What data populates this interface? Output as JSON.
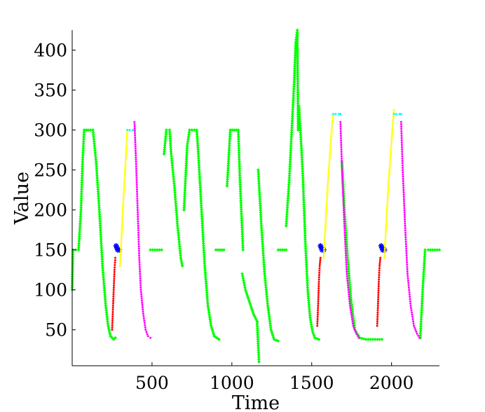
{
  "chart_data": {
    "type": "scatter",
    "xlabel": "Time",
    "ylabel": "Value",
    "xlim": [
      0,
      2300
    ],
    "ylim": [
      5,
      425
    ],
    "xticks": [
      500,
      1000,
      1500,
      2000
    ],
    "yticks": [
      50,
      100,
      150,
      200,
      250,
      300,
      350,
      400
    ],
    "grid": false,
    "colors": {
      "green": "#00ff00",
      "yellow": "#ffff00",
      "magenta": "#ff00ff",
      "cyan": "#00ffff",
      "red": "#ff0000",
      "blue": "#0000ff"
    },
    "series": [
      {
        "color_key": "green",
        "marker": "diamond",
        "segments": [
          [
            [
              0,
              100
            ],
            [
              5,
              150
            ],
            [
              40,
              150
            ],
            [
              55,
              200
            ],
            [
              65,
              260
            ],
            [
              75,
              300
            ],
            [
              100,
              300
            ],
            [
              130,
              300
            ],
            [
              150,
              260
            ],
            [
              170,
              200
            ],
            [
              190,
              130
            ],
            [
              210,
              80
            ],
            [
              225,
              55
            ],
            [
              240,
              42
            ],
            [
              260,
              38
            ],
            [
              270,
              40
            ]
          ],
          [
            [
              490,
              150
            ],
            [
              560,
              150
            ]
          ],
          [
            [
              575,
              270
            ],
            [
              590,
              300
            ],
            [
              610,
              300
            ],
            [
              620,
              270
            ],
            [
              640,
              230
            ],
            [
              660,
              180
            ],
            [
              680,
              140
            ],
            [
              690,
              130
            ]
          ],
          [
            [
              700,
              200
            ],
            [
              720,
              280
            ],
            [
              735,
              300
            ],
            [
              780,
              300
            ],
            [
              790,
              270
            ],
            [
              810,
              200
            ],
            [
              830,
              130
            ],
            [
              850,
              80
            ],
            [
              870,
              55
            ],
            [
              890,
              42
            ],
            [
              920,
              38
            ]
          ],
          [
            [
              900,
              150
            ],
            [
              950,
              150
            ]
          ],
          [
            [
              970,
              230
            ],
            [
              990,
              300
            ],
            [
              1040,
              300
            ],
            [
              1050,
              240
            ],
            [
              1070,
              150
            ]
          ],
          [
            [
              1065,
              120
            ],
            [
              1085,
              100
            ],
            [
              1110,
              85
            ],
            [
              1135,
              70
            ],
            [
              1160,
              60
            ]
          ],
          [
            [
              1158,
              60
            ],
            [
              1165,
              30
            ],
            [
              1170,
              10
            ]
          ],
          [
            [
              1165,
              250
            ],
            [
              1185,
              180
            ],
            [
              1205,
              120
            ],
            [
              1225,
              80
            ],
            [
              1245,
              50
            ],
            [
              1265,
              38
            ],
            [
              1290,
              36
            ]
          ],
          [
            [
              1290,
              150
            ],
            [
              1340,
              150
            ]
          ],
          [
            [
              1340,
              180
            ],
            [
              1360,
              240
            ],
            [
              1375,
              300
            ],
            [
              1390,
              360
            ],
            [
              1400,
              410
            ],
            [
              1410,
              425
            ],
            [
              1415,
              300
            ],
            [
              1420,
              330
            ],
            [
              1435,
              280
            ],
            [
              1445,
              240
            ],
            [
              1460,
              160
            ],
            [
              1475,
              100
            ],
            [
              1490,
              65
            ],
            [
              1505,
              48
            ],
            [
              1520,
              40
            ],
            [
              1545,
              38
            ]
          ],
          [
            [
              1690,
              260
            ],
            [
              1705,
              200
            ],
            [
              1725,
              140
            ],
            [
              1745,
              90
            ],
            [
              1770,
              50
            ],
            [
              1800,
              40
            ],
            [
              1840,
              38
            ],
            [
              1940,
              38
            ]
          ],
          [
            [
              2180,
              40
            ],
            [
              2195,
              100
            ],
            [
              2210,
              150
            ],
            [
              2230,
              150
            ],
            [
              2300,
              150
            ]
          ]
        ]
      },
      {
        "color_key": "red",
        "marker": "dot",
        "segments": [
          [
            [
              250,
              50
            ],
            [
              255,
              75
            ],
            [
              260,
              100
            ],
            [
              265,
              125
            ],
            [
              270,
              140
            ]
          ],
          [
            [
              1535,
              55
            ],
            [
              1540,
              80
            ],
            [
              1545,
              110
            ],
            [
              1550,
              130
            ],
            [
              1555,
              140
            ]
          ],
          [
            [
              1910,
              55
            ],
            [
              1915,
              80
            ],
            [
              1920,
              110
            ],
            [
              1925,
              130
            ],
            [
              1930,
              140
            ]
          ]
        ]
      },
      {
        "color_key": "blue",
        "marker": "star",
        "segments": [
          [
            [
              275,
              155
            ],
            [
              285,
              150
            ],
            [
              295,
              150
            ]
          ],
          [
            [
              1555,
              155
            ],
            [
              1565,
              150
            ],
            [
              1575,
              150
            ]
          ],
          [
            [
              1935,
              155
            ],
            [
              1945,
              150
            ],
            [
              1955,
              150
            ]
          ]
        ]
      },
      {
        "color_key": "yellow",
        "marker": "dot",
        "segments": [
          [
            [
              300,
              130
            ],
            [
              320,
              210
            ],
            [
              340,
              280
            ],
            [
              345,
              300
            ]
          ],
          [
            [
              1575,
              140
            ],
            [
              1600,
              230
            ],
            [
              1625,
              300
            ],
            [
              1635,
              320
            ]
          ],
          [
            [
              1955,
              140
            ],
            [
              1980,
              230
            ],
            [
              2005,
              300
            ],
            [
              2015,
              325
            ]
          ]
        ]
      },
      {
        "color_key": "cyan",
        "marker": "dot",
        "segments": [
          [
            [
              345,
              300
            ],
            [
              360,
              300
            ],
            [
              380,
              300
            ],
            [
              390,
              300
            ]
          ],
          [
            [
              1635,
              320
            ],
            [
              1650,
              320
            ],
            [
              1670,
              320
            ],
            [
              1680,
              320
            ]
          ],
          [
            [
              2015,
              320
            ],
            [
              2030,
              320
            ],
            [
              2050,
              320
            ],
            [
              2060,
              320
            ]
          ]
        ]
      },
      {
        "color_key": "magenta",
        "marker": "dot",
        "segments": [
          [
            [
              390,
              310
            ],
            [
              400,
              260
            ],
            [
              410,
              200
            ],
            [
              420,
              140
            ],
            [
              430,
              100
            ],
            [
              445,
              70
            ],
            [
              460,
              50
            ],
            [
              475,
              42
            ],
            [
              490,
              40
            ]
          ],
          [
            [
              1680,
              310
            ],
            [
              1690,
              250
            ],
            [
              1705,
              180
            ],
            [
              1720,
              120
            ],
            [
              1740,
              80
            ],
            [
              1760,
              55
            ],
            [
              1780,
              45
            ],
            [
              1795,
              40
            ]
          ],
          [
            [
              2060,
              310
            ],
            [
              2070,
              250
            ],
            [
              2085,
              180
            ],
            [
              2100,
              120
            ],
            [
              2120,
              80
            ],
            [
              2140,
              55
            ],
            [
              2160,
              45
            ],
            [
              2175,
              40
            ]
          ]
        ]
      }
    ]
  }
}
